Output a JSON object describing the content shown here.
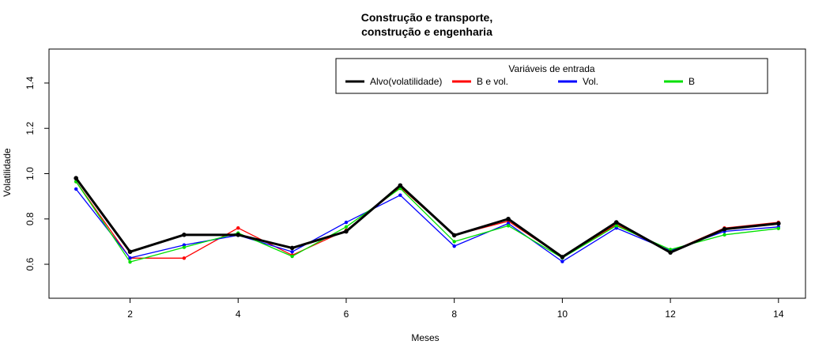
{
  "chart_data": {
    "type": "line",
    "title": [
      "Construção e transporte,",
      "construção e engenharia"
    ],
    "xlabel": "Meses",
    "ylabel": "Volatilidade",
    "xlim": [
      0.5,
      14.5
    ],
    "ylim": [
      0.45,
      1.55
    ],
    "xticks": [
      2,
      4,
      6,
      8,
      10,
      12,
      14
    ],
    "yticks": [
      0.6,
      0.8,
      1.0,
      1.2,
      1.4
    ],
    "ytick_labels": [
      "0.6",
      "0.8",
      "1.0",
      "1.2",
      "1.4"
    ],
    "grid": false,
    "legend": {
      "title": "Variáveis de entrada",
      "placement": "top-right"
    },
    "x": [
      1,
      2,
      3,
      4,
      5,
      6,
      7,
      8,
      9,
      10,
      11,
      12,
      13,
      14
    ],
    "series": [
      {
        "name": "Alvo(volatilidade)",
        "color": "#000000",
        "width": "thick",
        "values": [
          0.98,
          0.655,
          0.73,
          0.73,
          0.672,
          0.745,
          0.948,
          0.728,
          0.8,
          0.632,
          0.785,
          0.652,
          0.755,
          0.78
        ]
      },
      {
        "name": "B e vol.",
        "color": "#ff0000",
        "width": "thin",
        "values": [
          0.965,
          0.627,
          0.627,
          0.76,
          0.64,
          0.75,
          0.94,
          0.728,
          0.79,
          0.632,
          0.775,
          0.655,
          0.76,
          0.785
        ]
      },
      {
        "name": "Vol.",
        "color": "#0000ff",
        "width": "thin",
        "values": [
          0.932,
          0.628,
          0.685,
          0.728,
          0.655,
          0.785,
          0.905,
          0.68,
          0.78,
          0.612,
          0.76,
          0.66,
          0.745,
          0.765
        ]
      },
      {
        "name": "B",
        "color": "#00e000",
        "width": "thin",
        "values": [
          0.965,
          0.61,
          0.675,
          0.738,
          0.635,
          0.765,
          0.935,
          0.7,
          0.77,
          0.628,
          0.77,
          0.665,
          0.73,
          0.758
        ]
      }
    ]
  }
}
